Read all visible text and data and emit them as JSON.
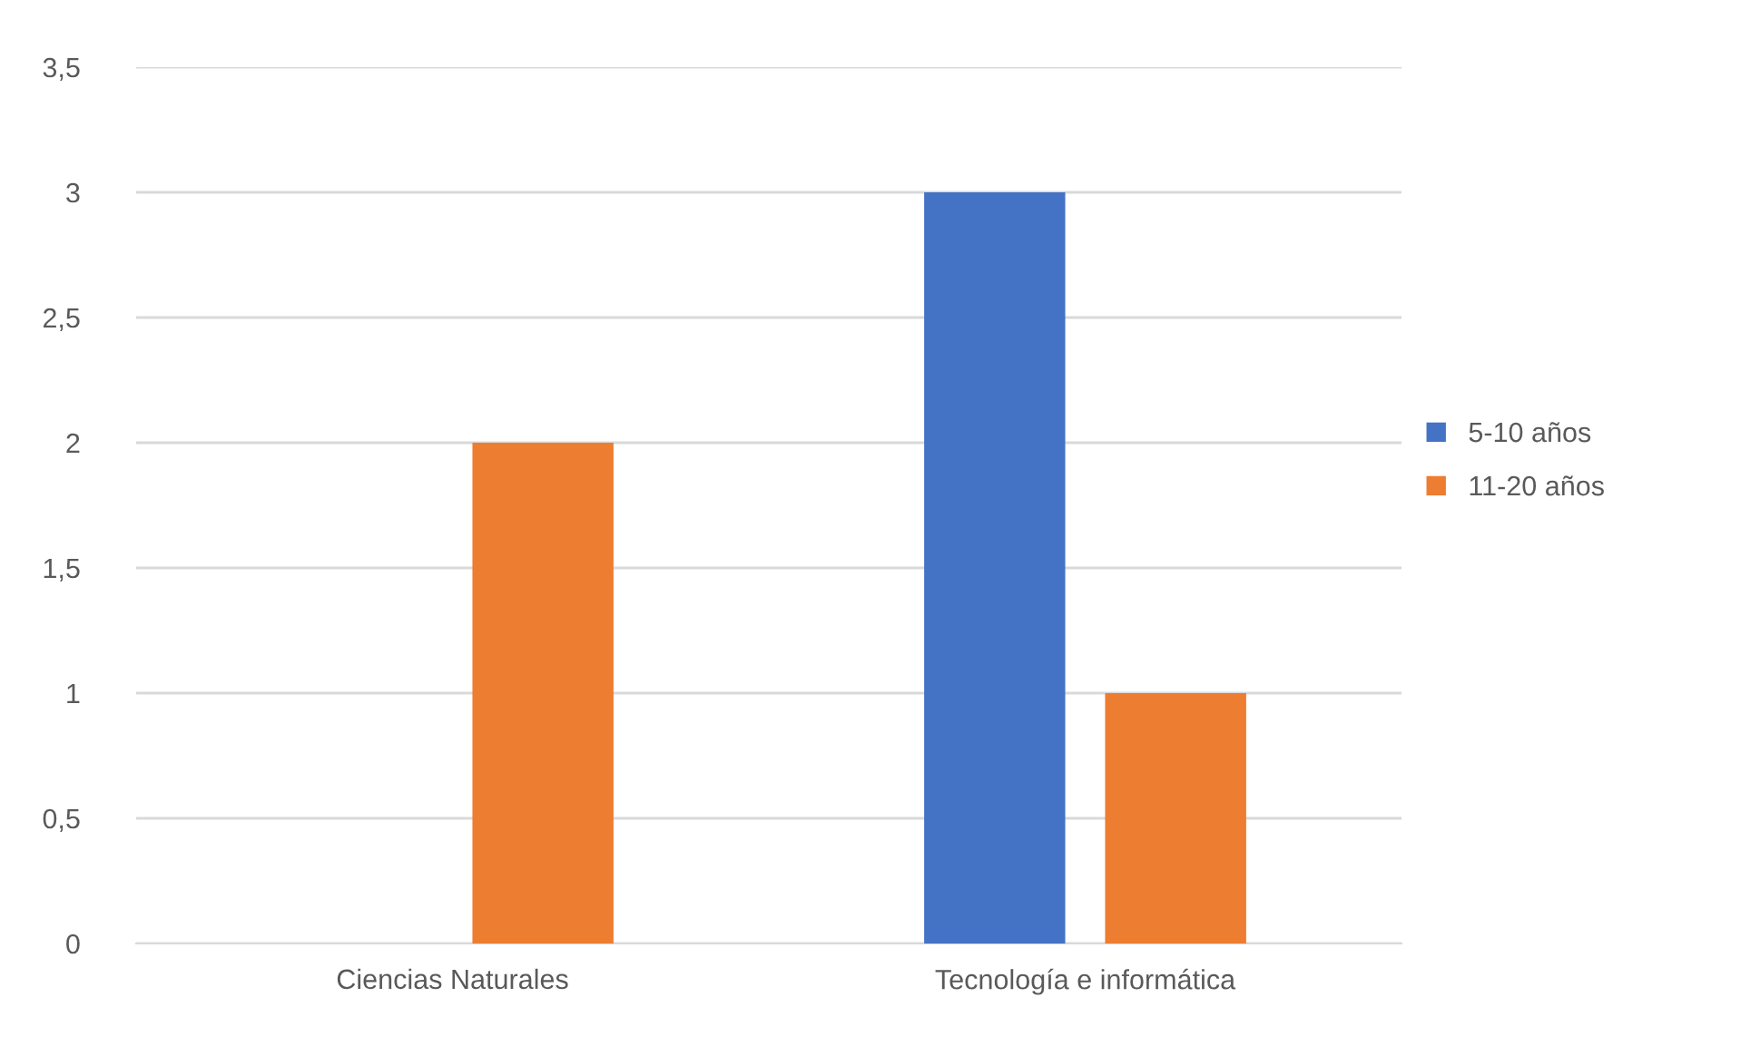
{
  "chart_data": {
    "type": "bar",
    "categories": [
      "Ciencias Naturales",
      "Tecnología e informática"
    ],
    "series": [
      {
        "name": "5-10 años",
        "color": "#4472c4",
        "values": [
          0,
          3
        ]
      },
      {
        "name": "11-20 años",
        "color": "#ed7d31",
        "values": [
          2,
          1
        ]
      }
    ],
    "ylim": [
      0,
      3.5
    ],
    "yticks": [
      0,
      {
        "value": 0.5,
        "label": "0,5"
      },
      1,
      {
        "value": 1.5,
        "label": "1,5"
      },
      2,
      {
        "value": 2.5,
        "label": "2,5"
      },
      3,
      {
        "value": 3.5,
        "label": "3,5"
      }
    ],
    "grid": "y",
    "legend": "right"
  }
}
